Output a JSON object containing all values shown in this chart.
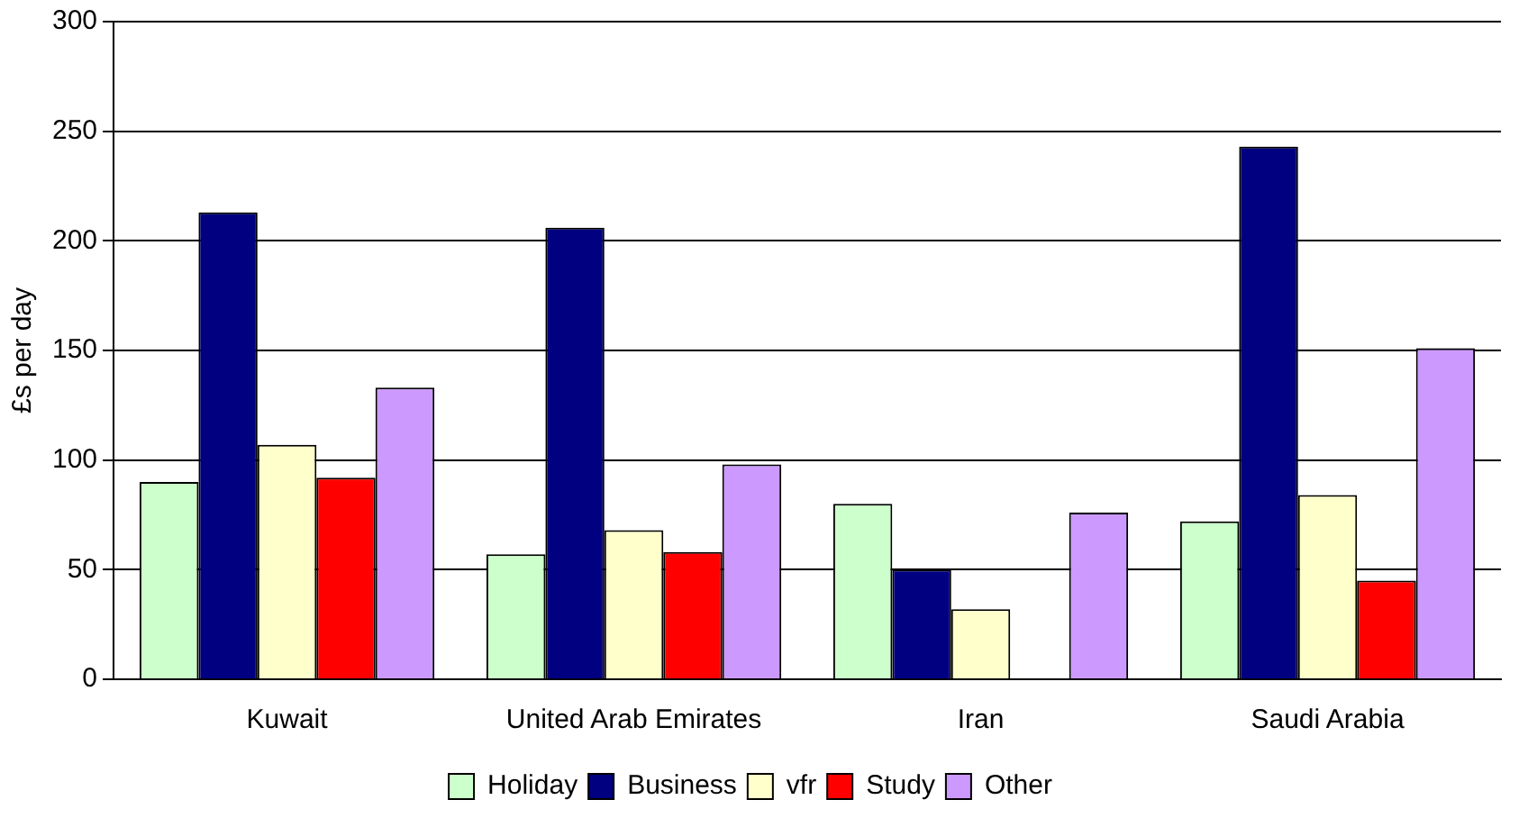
{
  "chart_data": {
    "type": "bar",
    "ylabel": "£s per day",
    "categories": [
      "Kuwait",
      "United Arab Emirates",
      "Iran",
      "Saudi Arabia"
    ],
    "series": [
      {
        "name": "Holiday",
        "color": "#ccffcc",
        "values": [
          90,
          57,
          80,
          72
        ]
      },
      {
        "name": "Business",
        "color": "#000080",
        "values": [
          213,
          206,
          50,
          243
        ]
      },
      {
        "name": "vfr",
        "color": "#ffffcc",
        "values": [
          107,
          68,
          32,
          84
        ]
      },
      {
        "name": "Study",
        "color": "#ff0000",
        "values": [
          92,
          58,
          null,
          45
        ]
      },
      {
        "name": "Other",
        "color": "#cc99ff",
        "values": [
          133,
          98,
          76,
          151
        ]
      }
    ],
    "ylim": [
      0,
      300
    ],
    "yticks": [
      0,
      50,
      100,
      150,
      200,
      250,
      300
    ],
    "grid": "y",
    "legend": "bottom"
  }
}
